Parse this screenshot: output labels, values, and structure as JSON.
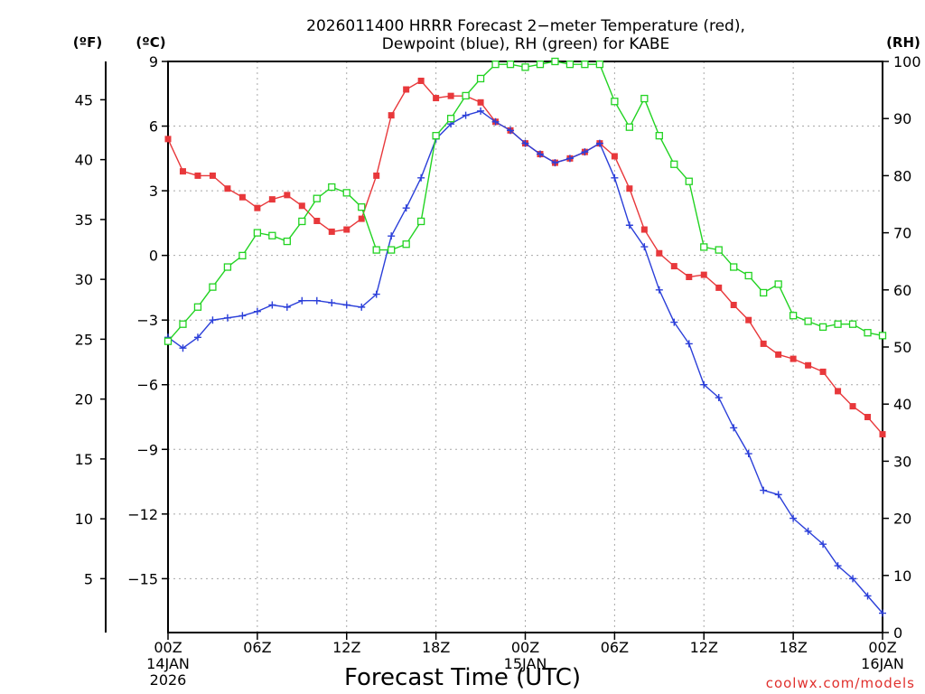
{
  "chart_data": {
    "type": "line",
    "title": [
      "2026011400 HRRR Forecast 2−meter Temperature (red),",
      "Dewpoint (blue), RH (green) for KABE"
    ],
    "xlabel": "Forecast Time (UTC)",
    "units": {
      "fahrenheit": "(ºF)",
      "celsius": "(ºC)",
      "rh": "(RH)"
    },
    "xlim": [
      0,
      48
    ],
    "x_ticks": [
      {
        "h": 0,
        "lines": [
          "00Z",
          "14JAN",
          "2026"
        ]
      },
      {
        "h": 6,
        "lines": [
          "06Z"
        ]
      },
      {
        "h": 12,
        "lines": [
          "12Z"
        ]
      },
      {
        "h": 18,
        "lines": [
          "18Z"
        ]
      },
      {
        "h": 24,
        "lines": [
          "00Z",
          "15JAN"
        ]
      },
      {
        "h": 30,
        "lines": [
          "06Z"
        ]
      },
      {
        "h": 36,
        "lines": [
          "12Z"
        ]
      },
      {
        "h": 42,
        "lines": [
          "18Z"
        ]
      },
      {
        "h": 48,
        "lines": [
          "00Z",
          "16JAN"
        ]
      }
    ],
    "ylim_celsius": [
      -17.5,
      9
    ],
    "celsius_ticks": [
      9,
      6,
      3,
      0,
      -3,
      -6,
      -9,
      -12,
      -15
    ],
    "fahrenheit_ticks": [
      45,
      40,
      35,
      30,
      25,
      20,
      15,
      10,
      5
    ],
    "ylim_rh": [
      0,
      100
    ],
    "rh_ticks": [
      100,
      90,
      80,
      70,
      60,
      50,
      40,
      30,
      20,
      10,
      0
    ],
    "grid": true,
    "series": [
      {
        "name": "Temperature",
        "axis": "celsius",
        "color": "#e8383b",
        "marker": "filled-square",
        "values": [
          5.4,
          3.9,
          3.7,
          3.7,
          3.1,
          2.7,
          2.2,
          2.6,
          2.8,
          2.3,
          1.6,
          1.1,
          1.2,
          1.7,
          3.7,
          6.5,
          7.7,
          8.1,
          7.3,
          7.4,
          7.4,
          7.1,
          6.2,
          5.8,
          5.2,
          4.7,
          4.3,
          4.5,
          4.8,
          5.2,
          4.6,
          3.1,
          1.2,
          0.1,
          -0.5,
          -1.0,
          -0.9,
          -1.5,
          -2.3,
          -3.0,
          -4.1,
          -4.6,
          -4.8,
          -5.1,
          -5.4,
          -6.3,
          -7.0,
          -7.5,
          -8.3
        ]
      },
      {
        "name": "Dewpoint",
        "axis": "celsius",
        "color": "#2b3fd9",
        "marker": "plus",
        "values": [
          -3.8,
          -4.3,
          -3.8,
          -3.0,
          -2.9,
          -2.8,
          -2.6,
          -2.3,
          -2.4,
          -2.1,
          -2.1,
          -2.2,
          -2.3,
          -2.4,
          -1.8,
          0.9,
          2.2,
          3.6,
          5.4,
          6.1,
          6.5,
          6.7,
          6.2,
          5.8,
          5.2,
          4.7,
          4.3,
          4.5,
          4.8,
          5.2,
          3.6,
          1.4,
          0.4,
          -1.6,
          -3.1,
          -4.1,
          -6.0,
          -6.6,
          -8.0,
          -9.2,
          -10.9,
          -11.1,
          -12.2,
          -12.8,
          -13.4,
          -14.4,
          -15.0,
          -15.8,
          -16.6
        ]
      },
      {
        "name": "RH",
        "axis": "rh",
        "color": "#22d322",
        "marker": "open-square",
        "values": [
          51,
          54,
          57,
          60.5,
          64,
          66,
          70,
          69.5,
          68.5,
          72,
          76,
          78,
          77,
          74.5,
          67,
          67,
          68,
          72,
          87,
          90,
          94,
          97,
          99.5,
          99.5,
          99,
          99.5,
          100,
          99.5,
          99.5,
          99.5,
          93,
          88.5,
          93.5,
          87,
          82,
          79,
          67.5,
          67,
          64,
          62.5,
          59.5,
          61,
          55.5,
          54.5,
          53.5,
          54,
          54,
          52.5,
          52
        ]
      }
    ],
    "credit": "coolwx.com/models"
  }
}
